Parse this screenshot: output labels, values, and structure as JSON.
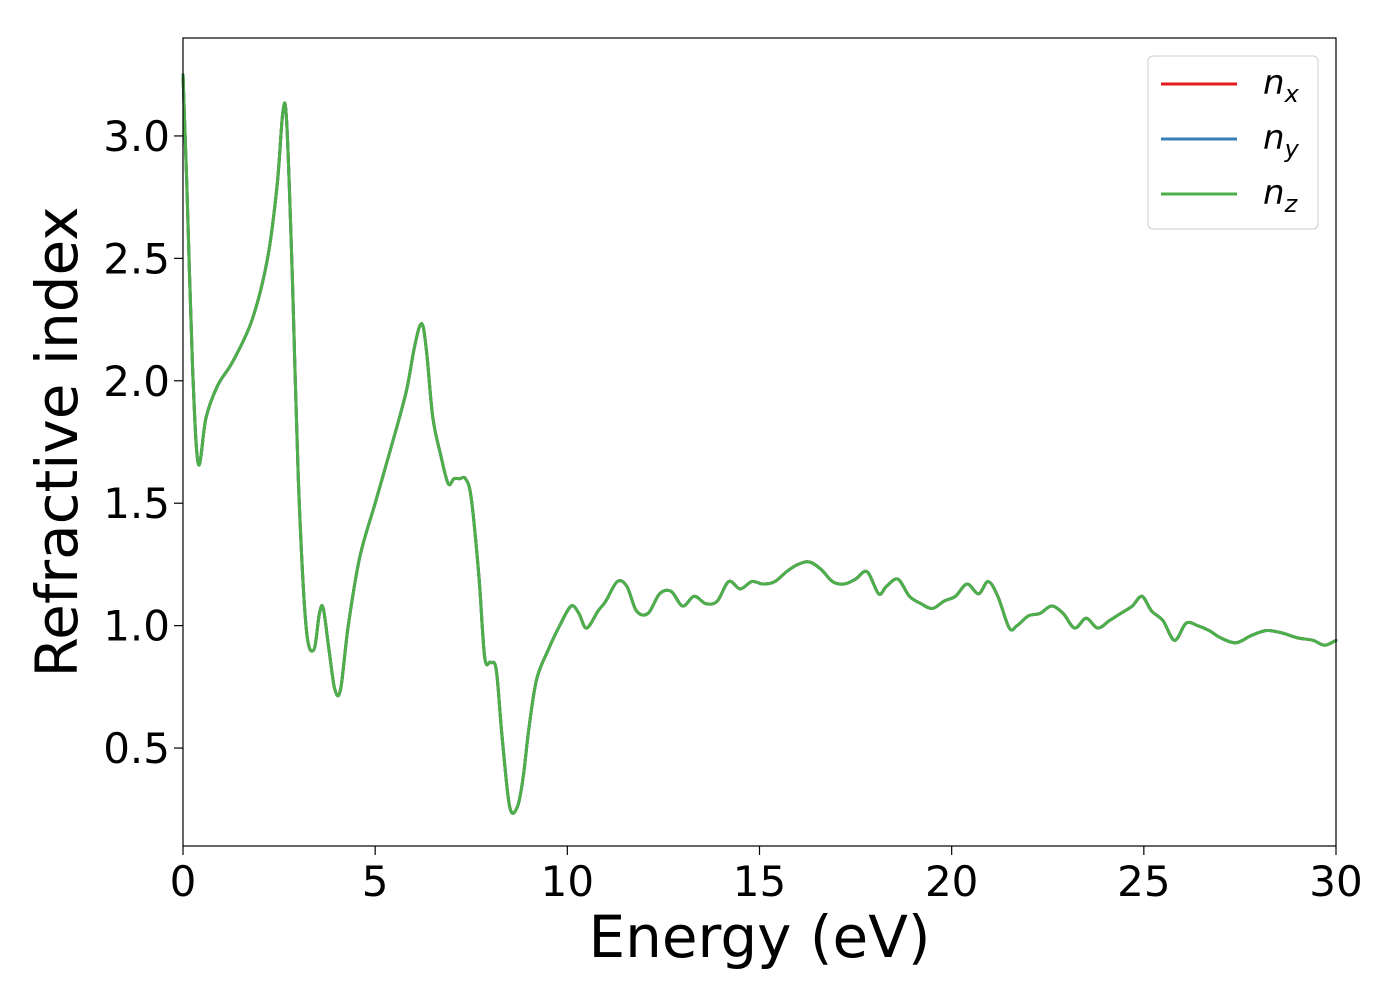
{
  "chart_data": {
    "type": "line",
    "xlabel": "Energy (eV)",
    "ylabel": "Refractive index",
    "xlim": [
      0,
      30
    ],
    "ylim": [
      0.1,
      3.4
    ],
    "xticks": [
      0,
      5,
      10,
      15,
      20,
      25,
      30
    ],
    "xtick_labels": [
      "0",
      "5",
      "10",
      "15",
      "20",
      "25",
      "30"
    ],
    "yticks": [
      0.5,
      1.0,
      1.5,
      2.0,
      2.5,
      3.0
    ],
    "ytick_labels": [
      "0.5",
      "1.0",
      "1.5",
      "2.0",
      "2.5",
      "3.0"
    ],
    "grid": false,
    "legend_position": "top-right",
    "colors": {
      "n_x": "#e41a1c",
      "n_y": "#377eb8",
      "n_z": "#4daf4a"
    },
    "series": [
      {
        "name": "n_x",
        "legend_base": "n",
        "legend_sub": "x",
        "color": "#e41a1c",
        "x": [
          0,
          0.1,
          0.25,
          0.4,
          0.6,
          0.9,
          1.3,
          1.8,
          2.2,
          2.45,
          2.6,
          2.7,
          2.85,
          3.0,
          3.2,
          3.4,
          3.55,
          3.65,
          3.8,
          3.95,
          4.1,
          4.3,
          4.6,
          5.0,
          5.4,
          5.8,
          6.0,
          6.15,
          6.25,
          6.35,
          6.5,
          6.7,
          6.9,
          7.05,
          7.2,
          7.35,
          7.5,
          7.7,
          7.85,
          8.0,
          8.15,
          8.3,
          8.5,
          8.7,
          8.85,
          9.0,
          9.2,
          9.5,
          9.8,
          10.1,
          10.3,
          10.5,
          10.8,
          11.0,
          11.3,
          11.55,
          11.8,
          12.1,
          12.4,
          12.7,
          13.0,
          13.3,
          13.6,
          13.9,
          14.2,
          14.5,
          14.8,
          15.1,
          15.4,
          15.7,
          16.0,
          16.3,
          16.6,
          16.9,
          17.2,
          17.5,
          17.8,
          18.1,
          18.3,
          18.6,
          18.9,
          19.2,
          19.5,
          19.8,
          20.1,
          20.4,
          20.7,
          20.95,
          21.2,
          21.5,
          21.7,
          22.0,
          22.3,
          22.6,
          22.9,
          23.2,
          23.5,
          23.8,
          24.1,
          24.4,
          24.7,
          24.95,
          25.2,
          25.5,
          25.8,
          26.1,
          26.4,
          26.7,
          27.0,
          27.4,
          27.8,
          28.2,
          28.6,
          29.0,
          29.4,
          29.7,
          30.0
        ],
        "y": [
          3.25,
          2.8,
          2.05,
          1.66,
          1.85,
          1.98,
          2.08,
          2.25,
          2.5,
          2.8,
          3.1,
          3.05,
          2.4,
          1.6,
          1.0,
          0.9,
          1.05,
          1.07,
          0.9,
          0.74,
          0.74,
          1.0,
          1.28,
          1.5,
          1.72,
          1.95,
          2.12,
          2.22,
          2.22,
          2.1,
          1.85,
          1.7,
          1.58,
          1.6,
          1.6,
          1.6,
          1.52,
          1.2,
          0.87,
          0.85,
          0.82,
          0.55,
          0.26,
          0.26,
          0.38,
          0.58,
          0.78,
          0.9,
          1.0,
          1.08,
          1.05,
          0.99,
          1.06,
          1.1,
          1.18,
          1.16,
          1.06,
          1.05,
          1.13,
          1.14,
          1.08,
          1.12,
          1.09,
          1.1,
          1.18,
          1.15,
          1.18,
          1.17,
          1.18,
          1.22,
          1.25,
          1.26,
          1.23,
          1.18,
          1.17,
          1.19,
          1.22,
          1.13,
          1.16,
          1.19,
          1.12,
          1.09,
          1.07,
          1.1,
          1.12,
          1.17,
          1.13,
          1.18,
          1.12,
          0.99,
          1.0,
          1.04,
          1.05,
          1.08,
          1.05,
          0.99,
          1.03,
          0.99,
          1.02,
          1.05,
          1.08,
          1.12,
          1.06,
          1.02,
          0.94,
          1.01,
          1.0,
          0.98,
          0.95,
          0.93,
          0.96,
          0.98,
          0.97,
          0.95,
          0.94,
          0.92,
          0.94
        ]
      },
      {
        "name": "n_y",
        "legend_base": "n",
        "legend_sub": "y",
        "color": "#377eb8",
        "x": [
          0,
          0.1,
          0.25,
          0.4,
          0.6,
          0.9,
          1.3,
          1.8,
          2.2,
          2.45,
          2.6,
          2.7,
          2.85,
          3.0,
          3.2,
          3.4,
          3.55,
          3.65,
          3.8,
          3.95,
          4.1,
          4.3,
          4.6,
          5.0,
          5.4,
          5.8,
          6.0,
          6.15,
          6.25,
          6.35,
          6.5,
          6.7,
          6.9,
          7.05,
          7.2,
          7.35,
          7.5,
          7.7,
          7.85,
          8.0,
          8.15,
          8.3,
          8.5,
          8.7,
          8.85,
          9.0,
          9.2,
          9.5,
          9.8,
          10.1,
          10.3,
          10.5,
          10.8,
          11.0,
          11.3,
          11.55,
          11.8,
          12.1,
          12.4,
          12.7,
          13.0,
          13.3,
          13.6,
          13.9,
          14.2,
          14.5,
          14.8,
          15.1,
          15.4,
          15.7,
          16.0,
          16.3,
          16.6,
          16.9,
          17.2,
          17.5,
          17.8,
          18.1,
          18.3,
          18.6,
          18.9,
          19.2,
          19.5,
          19.8,
          20.1,
          20.4,
          20.7,
          20.95,
          21.2,
          21.5,
          21.7,
          22.0,
          22.3,
          22.6,
          22.9,
          23.2,
          23.5,
          23.8,
          24.1,
          24.4,
          24.7,
          24.95,
          25.2,
          25.5,
          25.8,
          26.1,
          26.4,
          26.7,
          27.0,
          27.4,
          27.8,
          28.2,
          28.6,
          29.0,
          29.4,
          29.7,
          30.0
        ],
        "y": [
          3.25,
          2.8,
          2.05,
          1.66,
          1.85,
          1.98,
          2.08,
          2.25,
          2.5,
          2.8,
          3.1,
          3.05,
          2.4,
          1.6,
          1.0,
          0.9,
          1.05,
          1.07,
          0.9,
          0.74,
          0.74,
          1.0,
          1.28,
          1.5,
          1.72,
          1.95,
          2.12,
          2.22,
          2.22,
          2.1,
          1.85,
          1.7,
          1.58,
          1.6,
          1.6,
          1.6,
          1.52,
          1.2,
          0.87,
          0.85,
          0.82,
          0.55,
          0.26,
          0.26,
          0.38,
          0.58,
          0.78,
          0.9,
          1.0,
          1.08,
          1.05,
          0.99,
          1.06,
          1.1,
          1.18,
          1.16,
          1.06,
          1.05,
          1.13,
          1.14,
          1.08,
          1.12,
          1.09,
          1.1,
          1.18,
          1.15,
          1.18,
          1.17,
          1.18,
          1.22,
          1.25,
          1.26,
          1.23,
          1.18,
          1.17,
          1.19,
          1.22,
          1.13,
          1.16,
          1.19,
          1.12,
          1.09,
          1.07,
          1.1,
          1.12,
          1.17,
          1.13,
          1.18,
          1.12,
          0.99,
          1.0,
          1.04,
          1.05,
          1.08,
          1.05,
          0.99,
          1.03,
          0.99,
          1.02,
          1.05,
          1.08,
          1.12,
          1.06,
          1.02,
          0.94,
          1.01,
          1.0,
          0.98,
          0.95,
          0.93,
          0.96,
          0.98,
          0.97,
          0.95,
          0.94,
          0.92,
          0.94
        ]
      },
      {
        "name": "n_z",
        "legend_base": "n",
        "legend_sub": "z",
        "color": "#4daf4a",
        "x": [
          0,
          0.1,
          0.25,
          0.4,
          0.6,
          0.9,
          1.3,
          1.8,
          2.2,
          2.45,
          2.6,
          2.7,
          2.85,
          3.0,
          3.2,
          3.4,
          3.55,
          3.65,
          3.8,
          3.95,
          4.1,
          4.3,
          4.6,
          5.0,
          5.4,
          5.8,
          6.0,
          6.15,
          6.25,
          6.35,
          6.5,
          6.7,
          6.9,
          7.05,
          7.2,
          7.35,
          7.5,
          7.7,
          7.85,
          8.0,
          8.15,
          8.3,
          8.5,
          8.7,
          8.85,
          9.0,
          9.2,
          9.5,
          9.8,
          10.1,
          10.3,
          10.5,
          10.8,
          11.0,
          11.3,
          11.55,
          11.8,
          12.1,
          12.4,
          12.7,
          13.0,
          13.3,
          13.6,
          13.9,
          14.2,
          14.5,
          14.8,
          15.1,
          15.4,
          15.7,
          16.0,
          16.3,
          16.6,
          16.9,
          17.2,
          17.5,
          17.8,
          18.1,
          18.3,
          18.6,
          18.9,
          19.2,
          19.5,
          19.8,
          20.1,
          20.4,
          20.7,
          20.95,
          21.2,
          21.5,
          21.7,
          22.0,
          22.3,
          22.6,
          22.9,
          23.2,
          23.5,
          23.8,
          24.1,
          24.4,
          24.7,
          24.95,
          25.2,
          25.5,
          25.8,
          26.1,
          26.4,
          26.7,
          27.0,
          27.4,
          27.8,
          28.2,
          28.6,
          29.0,
          29.4,
          29.7,
          30.0
        ],
        "y": [
          3.25,
          2.8,
          2.05,
          1.66,
          1.85,
          1.98,
          2.08,
          2.25,
          2.5,
          2.8,
          3.1,
          3.05,
          2.4,
          1.6,
          1.0,
          0.9,
          1.05,
          1.07,
          0.9,
          0.74,
          0.74,
          1.0,
          1.28,
          1.5,
          1.72,
          1.95,
          2.12,
          2.22,
          2.22,
          2.1,
          1.85,
          1.7,
          1.58,
          1.6,
          1.6,
          1.6,
          1.52,
          1.2,
          0.87,
          0.85,
          0.82,
          0.55,
          0.26,
          0.26,
          0.38,
          0.58,
          0.78,
          0.9,
          1.0,
          1.08,
          1.05,
          0.99,
          1.06,
          1.1,
          1.18,
          1.16,
          1.06,
          1.05,
          1.13,
          1.14,
          1.08,
          1.12,
          1.09,
          1.1,
          1.18,
          1.15,
          1.18,
          1.17,
          1.18,
          1.22,
          1.25,
          1.26,
          1.23,
          1.18,
          1.17,
          1.19,
          1.22,
          1.13,
          1.16,
          1.19,
          1.12,
          1.09,
          1.07,
          1.1,
          1.12,
          1.17,
          1.13,
          1.18,
          1.12,
          0.99,
          1.0,
          1.04,
          1.05,
          1.08,
          1.05,
          0.99,
          1.03,
          0.99,
          1.02,
          1.05,
          1.08,
          1.12,
          1.06,
          1.02,
          0.94,
          1.01,
          1.0,
          0.98,
          0.95,
          0.93,
          0.96,
          0.98,
          0.97,
          0.95,
          0.94,
          0.92,
          0.94
        ]
      }
    ]
  }
}
